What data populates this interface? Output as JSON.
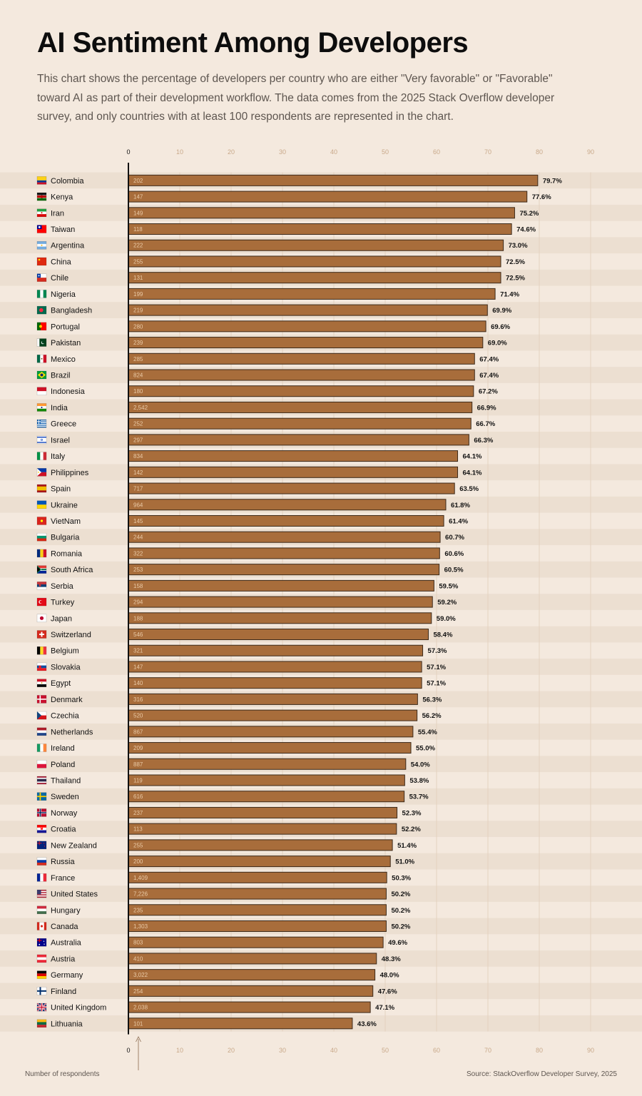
{
  "title": "AI Sentiment Among Developers",
  "subtitle": "This chart shows the percentage of developers per country who are either \"Very favorable\" or \"Favorable\" toward AI as part of their development workflow. The data comes from the 2025 Stack Overflow developer survey, and only countries with at least 100 respondents are represented in the chart.",
  "annotation": "Number of respondents",
  "source": "Source: StackOverflow Developer Survey, 2025",
  "colors": {
    "bar": "#a86d3b",
    "bar_border": "#3d2a1a",
    "band": "#ecdfd1",
    "background": "#f4e9de",
    "tick": "#c9a98a",
    "axis": "#111111"
  },
  "chart_data": {
    "type": "bar",
    "orientation": "horizontal",
    "xlim": [
      0,
      90
    ],
    "ticks": [
      0,
      10,
      20,
      30,
      40,
      50,
      60,
      70,
      80,
      90
    ],
    "tick_labels": [
      "0",
      "10",
      "20",
      "30",
      "40",
      "50",
      "60",
      "70",
      "80",
      "90"
    ],
    "grid": true,
    "rows": [
      {
        "country": "Colombia",
        "flag": "colombia-flag-icon",
        "value": 79.7,
        "label": "79.7%",
        "respondents": "202"
      },
      {
        "country": "Kenya",
        "flag": "kenya-flag-icon",
        "value": 77.6,
        "label": "77.6%",
        "respondents": "147"
      },
      {
        "country": "Iran",
        "flag": "iran-flag-icon",
        "value": 75.2,
        "label": "75.2%",
        "respondents": "149"
      },
      {
        "country": "Taiwan",
        "flag": "taiwan-flag-icon",
        "value": 74.6,
        "label": "74.6%",
        "respondents": "118"
      },
      {
        "country": "Argentina",
        "flag": "argentina-flag-icon",
        "value": 73.0,
        "label": "73.0%",
        "respondents": "222"
      },
      {
        "country": "China",
        "flag": "china-flag-icon",
        "value": 72.5,
        "label": "72.5%",
        "respondents": "255"
      },
      {
        "country": "Chile",
        "flag": "chile-flag-icon",
        "value": 72.5,
        "label": "72.5%",
        "respondents": "131"
      },
      {
        "country": "Nigeria",
        "flag": "nigeria-flag-icon",
        "value": 71.4,
        "label": "71.4%",
        "respondents": "199"
      },
      {
        "country": "Bangladesh",
        "flag": "bangladesh-flag-icon",
        "value": 69.9,
        "label": "69.9%",
        "respondents": "219"
      },
      {
        "country": "Portugal",
        "flag": "portugal-flag-icon",
        "value": 69.6,
        "label": "69.6%",
        "respondents": "280"
      },
      {
        "country": "Pakistan",
        "flag": "pakistan-flag-icon",
        "value": 69.0,
        "label": "69.0%",
        "respondents": "239"
      },
      {
        "country": "Mexico",
        "flag": "mexico-flag-icon",
        "value": 67.4,
        "label": "67.4%",
        "respondents": "285"
      },
      {
        "country": "Brazil",
        "flag": "brazil-flag-icon",
        "value": 67.4,
        "label": "67.4%",
        "respondents": "824"
      },
      {
        "country": "Indonesia",
        "flag": "indonesia-flag-icon",
        "value": 67.2,
        "label": "67.2%",
        "respondents": "180"
      },
      {
        "country": "India",
        "flag": "india-flag-icon",
        "value": 66.9,
        "label": "66.9%",
        "respondents": "2,542"
      },
      {
        "country": "Greece",
        "flag": "greece-flag-icon",
        "value": 66.7,
        "label": "66.7%",
        "respondents": "252"
      },
      {
        "country": "Israel",
        "flag": "israel-flag-icon",
        "value": 66.3,
        "label": "66.3%",
        "respondents": "297"
      },
      {
        "country": "Italy",
        "flag": "italy-flag-icon",
        "value": 64.1,
        "label": "64.1%",
        "respondents": "834"
      },
      {
        "country": "Philippines",
        "flag": "philippines-flag-icon",
        "value": 64.1,
        "label": "64.1%",
        "respondents": "142"
      },
      {
        "country": "Spain",
        "flag": "spain-flag-icon",
        "value": 63.5,
        "label": "63.5%",
        "respondents": "717"
      },
      {
        "country": "Ukraine",
        "flag": "ukraine-flag-icon",
        "value": 61.8,
        "label": "61.8%",
        "respondents": "964"
      },
      {
        "country": "VietNam",
        "flag": "vietnam-flag-icon",
        "value": 61.4,
        "label": "61.4%",
        "respondents": "145"
      },
      {
        "country": "Bulgaria",
        "flag": "bulgaria-flag-icon",
        "value": 60.7,
        "label": "60.7%",
        "respondents": "244"
      },
      {
        "country": "Romania",
        "flag": "romania-flag-icon",
        "value": 60.6,
        "label": "60.6%",
        "respondents": "322"
      },
      {
        "country": "South Africa",
        "flag": "south-africa-flag-icon",
        "value": 60.5,
        "label": "60.5%",
        "respondents": "253"
      },
      {
        "country": "Serbia",
        "flag": "serbia-flag-icon",
        "value": 59.5,
        "label": "59.5%",
        "respondents": "158"
      },
      {
        "country": "Turkey",
        "flag": "turkey-flag-icon",
        "value": 59.2,
        "label": "59.2%",
        "respondents": "294"
      },
      {
        "country": "Japan",
        "flag": "japan-flag-icon",
        "value": 59.0,
        "label": "59.0%",
        "respondents": "188"
      },
      {
        "country": "Switzerland",
        "flag": "switzerland-flag-icon",
        "value": 58.4,
        "label": "58.4%",
        "respondents": "546"
      },
      {
        "country": "Belgium",
        "flag": "belgium-flag-icon",
        "value": 57.3,
        "label": "57.3%",
        "respondents": "321"
      },
      {
        "country": "Slovakia",
        "flag": "slovakia-flag-icon",
        "value": 57.1,
        "label": "57.1%",
        "respondents": "147"
      },
      {
        "country": "Egypt",
        "flag": "egypt-flag-icon",
        "value": 57.1,
        "label": "57.1%",
        "respondents": "140"
      },
      {
        "country": "Denmark",
        "flag": "denmark-flag-icon",
        "value": 56.3,
        "label": "56.3%",
        "respondents": "316"
      },
      {
        "country": "Czechia",
        "flag": "czechia-flag-icon",
        "value": 56.2,
        "label": "56.2%",
        "respondents": "520"
      },
      {
        "country": "Netherlands",
        "flag": "netherlands-flag-icon",
        "value": 55.4,
        "label": "55.4%",
        "respondents": "867"
      },
      {
        "country": "Ireland",
        "flag": "ireland-flag-icon",
        "value": 55.0,
        "label": "55.0%",
        "respondents": "209"
      },
      {
        "country": "Poland",
        "flag": "poland-flag-icon",
        "value": 54.0,
        "label": "54.0%",
        "respondents": "887"
      },
      {
        "country": "Thailand",
        "flag": "thailand-flag-icon",
        "value": 53.8,
        "label": "53.8%",
        "respondents": "119"
      },
      {
        "country": "Sweden",
        "flag": "sweden-flag-icon",
        "value": 53.7,
        "label": "53.7%",
        "respondents": "616"
      },
      {
        "country": "Norway",
        "flag": "norway-flag-icon",
        "value": 52.3,
        "label": "52.3%",
        "respondents": "237"
      },
      {
        "country": "Croatia",
        "flag": "croatia-flag-icon",
        "value": 52.2,
        "label": "52.2%",
        "respondents": "113"
      },
      {
        "country": "New Zealand",
        "flag": "new-zealand-flag-icon",
        "value": 51.4,
        "label": "51.4%",
        "respondents": "255"
      },
      {
        "country": "Russia",
        "flag": "russia-flag-icon",
        "value": 51.0,
        "label": "51.0%",
        "respondents": "200"
      },
      {
        "country": "France",
        "flag": "france-flag-icon",
        "value": 50.3,
        "label": "50.3%",
        "respondents": "1,409"
      },
      {
        "country": "United States",
        "flag": "united-states-flag-icon",
        "value": 50.2,
        "label": "50.2%",
        "respondents": "7,226"
      },
      {
        "country": "Hungary",
        "flag": "hungary-flag-icon",
        "value": 50.2,
        "label": "50.2%",
        "respondents": "235"
      },
      {
        "country": "Canada",
        "flag": "canada-flag-icon",
        "value": 50.2,
        "label": "50.2%",
        "respondents": "1,303"
      },
      {
        "country": "Australia",
        "flag": "australia-flag-icon",
        "value": 49.6,
        "label": "49.6%",
        "respondents": "803"
      },
      {
        "country": "Austria",
        "flag": "austria-flag-icon",
        "value": 48.3,
        "label": "48.3%",
        "respondents": "410"
      },
      {
        "country": "Germany",
        "flag": "germany-flag-icon",
        "value": 48.0,
        "label": "48.0%",
        "respondents": "3,022"
      },
      {
        "country": "Finland",
        "flag": "finland-flag-icon",
        "value": 47.6,
        "label": "47.6%",
        "respondents": "254"
      },
      {
        "country": "United Kingdom",
        "flag": "united-kingdom-flag-icon",
        "value": 47.1,
        "label": "47.1%",
        "respondents": "2,038"
      },
      {
        "country": "Lithuania",
        "flag": "lithuania-flag-icon",
        "value": 43.6,
        "label": "43.6%",
        "respondents": "101"
      }
    ]
  }
}
